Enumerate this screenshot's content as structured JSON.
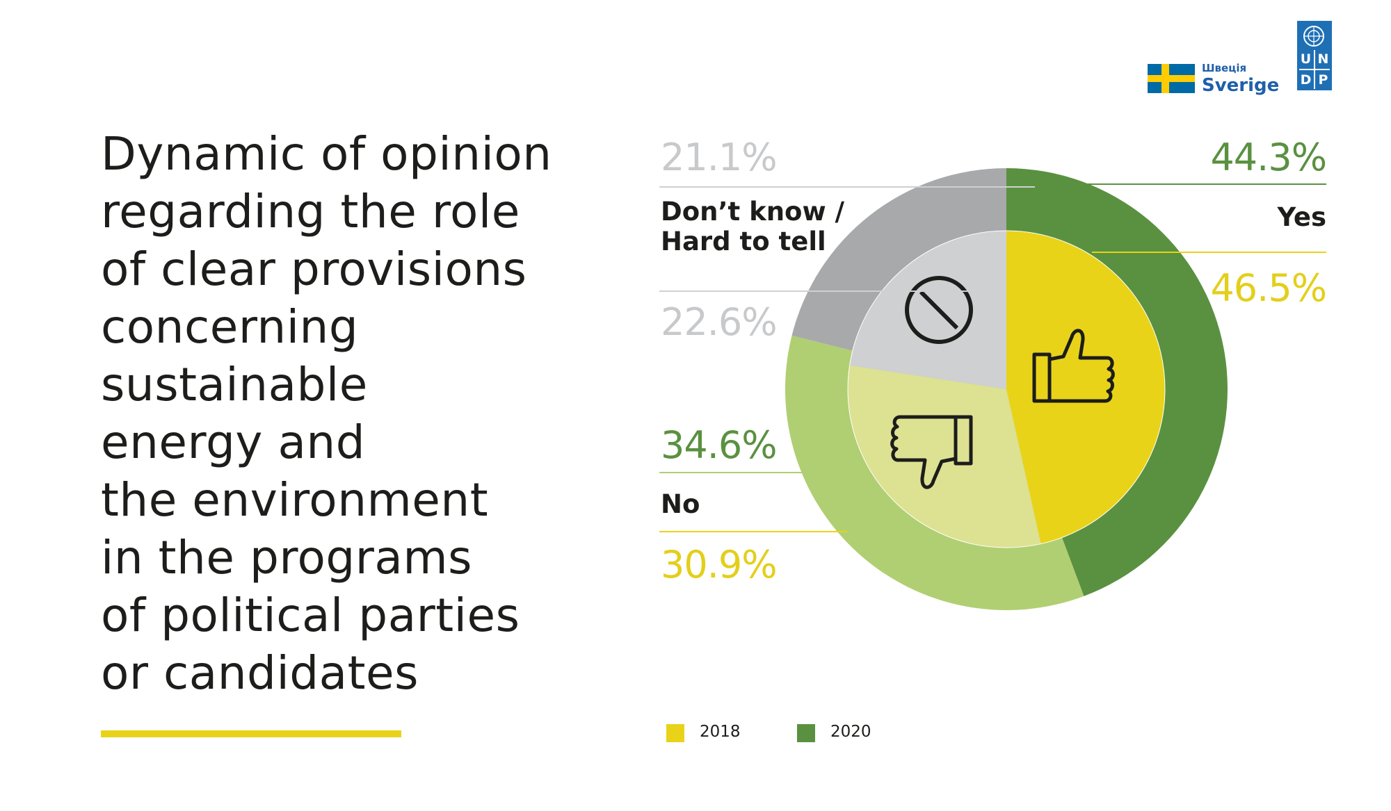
{
  "title_lines": [
    "Dynamic of opinion",
    "regarding the role",
    "of clear provisions",
    "concerning",
    "sustainable",
    "energy and",
    "the environment",
    "in the programs",
    "of political parties",
    "or candidates"
  ],
  "logos": {
    "sweden_small": "Швеція",
    "sweden_big": "Sverige",
    "undp_letters": [
      "U",
      "N",
      "D",
      "P"
    ]
  },
  "colors": {
    "yes_2020": "#5a9140",
    "yes_2018": "#e8d319",
    "no_2020": "#b0cf72",
    "no_2018": "#dde192",
    "dk_2020": "#a8a9ab",
    "dk_2018": "#cfd0d2",
    "green_text": "#5a9140",
    "yellow_text": "#e3cf1a",
    "gray_text": "#c8c9cb",
    "rule_gray": "#cfd0d2",
    "rule_green": "#5a9140",
    "rule_light_green": "#b0cf72",
    "rule_yellow": "#e8d319"
  },
  "chart_data": {
    "type": "pie",
    "layout": "nested donut (inner ring 2018, outer ring 2020)",
    "categories": [
      "Yes",
      "No",
      "Don’t know / Hard to tell"
    ],
    "series": [
      {
        "name": "2018",
        "values": [
          46.5,
          30.9,
          22.6
        ]
      },
      {
        "name": "2020",
        "values": [
          44.3,
          34.6,
          21.1
        ]
      }
    ],
    "unit": "%",
    "legend": [
      "2018",
      "2020"
    ],
    "legend_position": "bottom",
    "icons": [
      "thumbs-up-icon",
      "thumbs-down-icon",
      "prohibited-icon"
    ]
  },
  "labels": {
    "yes": {
      "name": "Yes",
      "v2020": "44.3%",
      "v2018": "46.5%"
    },
    "no": {
      "name": "No",
      "v2020": "34.6%",
      "v2018": "30.9%"
    },
    "dk": {
      "name_line1": "Don’t know /",
      "name_line2": "Hard to tell",
      "v2020": "21.1%",
      "v2018": "22.6%"
    }
  }
}
